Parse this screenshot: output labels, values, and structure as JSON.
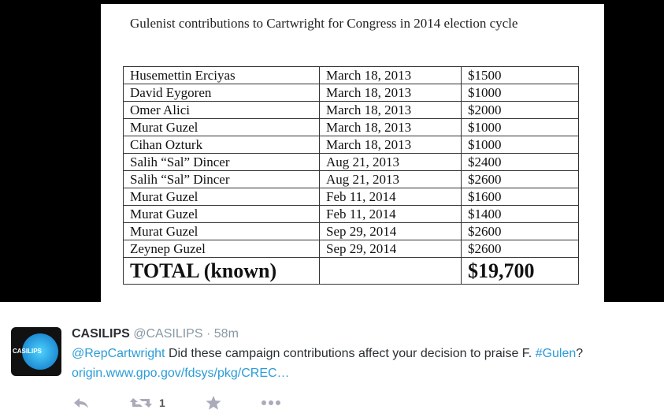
{
  "image": {
    "title": "Gulenist contributions to Cartwright for Congress in 2014 election cycle"
  },
  "table": {
    "rows": [
      [
        "Husemettin Erciyas",
        "March 18, 2013",
        "$1500"
      ],
      [
        "David Eygoren",
        "March 18, 2013",
        "$1000"
      ],
      [
        "Omer Alici",
        "March 18, 2013",
        "$2000"
      ],
      [
        "Murat Guzel",
        "March 18, 2013",
        "$1000"
      ],
      [
        "Cihan Ozturk",
        "March 18, 2013",
        "$1000"
      ],
      [
        "Salih “Sal” Dincer",
        "Aug 21, 2013",
        "$2400"
      ],
      [
        "Salih “Sal” Dincer",
        "Aug 21, 2013",
        "$2600"
      ],
      [
        "Murat Guzel",
        "Feb 11, 2014",
        "$1600"
      ],
      [
        "Murat Guzel",
        "Feb 11, 2014",
        "$1400"
      ],
      [
        "Murat Guzel",
        "Sep 29, 2014",
        "$2600"
      ],
      [
        "Zeynep Guzel",
        "Sep 29, 2014",
        "$2600"
      ]
    ],
    "total": {
      "label": "TOTAL (known)",
      "amount": "$19,700"
    }
  },
  "tweet": {
    "avatar_text": "CASILIPS",
    "name": "CASILIPS",
    "handle": "@CASILIPS",
    "separator": "·",
    "time": "58m",
    "mention": "@RepCartwright",
    "text": " Did these campaign contributions affect your decision to praise F. ",
    "hashtag": "#Gulen",
    "text_end": "?",
    "link": "origin.www.gpo.gov/fdsys/pkg/CREC…",
    "retweets": 1
  }
}
